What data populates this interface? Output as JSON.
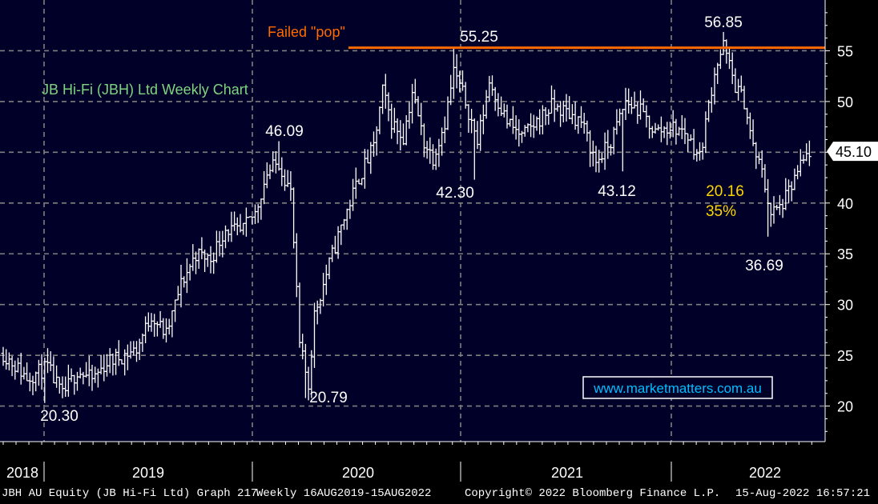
{
  "chart_data": {
    "type": "ohlc",
    "title": "JB Hi-Fi (JBH) Ltd Weekly Chart",
    "ylim": [
      16.5,
      60
    ],
    "yticks": [
      20,
      25,
      30,
      35,
      40,
      45,
      50,
      55
    ],
    "years": [
      "2018",
      "2019",
      "2020",
      "2021",
      "2022"
    ],
    "last_price": "45.10",
    "resistance": {
      "value": 55.3,
      "label": "Failed \"pop\""
    },
    "annotations": [
      {
        "text": "46.09",
        "value": 46.09
      },
      {
        "text": "55.25",
        "value": 55.25
      },
      {
        "text": "42.30",
        "value": 42.3
      },
      {
        "text": "43.12",
        "value": 43.12
      },
      {
        "text": "56.85",
        "value": 56.85
      },
      {
        "text": "20.16",
        "value": 20.16
      },
      {
        "text": "35%",
        "value": 35
      },
      {
        "text": "36.69",
        "value": 36.69
      },
      {
        "text": "20.30",
        "value": 20.3
      },
      {
        "text": "20.79",
        "value": 20.79
      }
    ],
    "watermark": "www.marketmatters.com.au",
    "colors": {
      "bars": "#ffffff",
      "resistance": "#ff6a00",
      "title": "#7fd47f",
      "callout": "#ffd700",
      "grid": "#7f7f7f",
      "background": "#000000",
      "watermark": "#00bfff"
    },
    "price_path": [
      [
        0,
        25.2
      ],
      [
        8,
        22.8
      ],
      [
        15,
        23.8
      ],
      [
        20,
        21.0
      ],
      [
        25,
        23.5
      ],
      [
        30,
        22.6
      ],
      [
        35,
        24.3
      ],
      [
        45,
        25.6
      ],
      [
        50,
        29.0
      ],
      [
        55,
        27.0
      ],
      [
        60,
        32.0
      ],
      [
        65,
        35.0
      ],
      [
        70,
        34.5
      ],
      [
        75,
        37.5
      ],
      [
        80,
        37.0
      ],
      [
        85,
        39.0
      ],
      [
        89,
        43.0
      ],
      [
        93,
        44.0
      ],
      [
        97,
        41.0
      ],
      [
        100,
        26.0
      ],
      [
        103,
        22.0
      ],
      [
        105,
        29.0
      ],
      [
        110,
        34.0
      ],
      [
        115,
        38.5
      ],
      [
        120,
        42.5
      ],
      [
        125,
        45.5
      ],
      [
        128,
        51.0
      ],
      [
        131,
        48.0
      ],
      [
        135,
        46.5
      ],
      [
        138,
        51.0
      ],
      [
        142,
        46.0
      ],
      [
        145,
        44.5
      ],
      [
        149,
        48.0
      ],
      [
        152,
        53.0
      ],
      [
        156,
        50.0
      ],
      [
        160,
        46.0
      ],
      [
        164,
        52.0
      ],
      [
        170,
        48.0
      ],
      [
        175,
        46.5
      ],
      [
        180,
        48.0
      ],
      [
        185,
        49.5
      ],
      [
        190,
        49.0
      ],
      [
        195,
        48.0
      ],
      [
        200,
        44.0
      ],
      [
        205,
        46.0
      ],
      [
        210,
        50.0
      ],
      [
        215,
        49.0
      ],
      [
        220,
        47.0
      ],
      [
        225,
        47.5
      ],
      [
        230,
        47.0
      ],
      [
        235,
        44.5
      ],
      [
        240,
        53.0
      ],
      [
        243,
        55.5
      ],
      [
        247,
        51.5
      ],
      [
        250,
        50.0
      ],
      [
        253,
        45.5
      ],
      [
        256,
        43.0
      ],
      [
        259,
        39.0
      ],
      [
        262,
        39.5
      ],
      [
        265,
        41.0
      ],
      [
        268,
        43.0
      ],
      [
        272,
        45.1
      ]
    ]
  },
  "footer": {
    "security": "JBH AU Equity (JB Hi-Fi Ltd) Graph 217",
    "range": "Weekly 16AUG2019-15AUG2022",
    "copyright": "Copyright© 2022 Bloomberg Finance L.P.",
    "timestamp": "15-Aug-2022 16:57:21"
  }
}
